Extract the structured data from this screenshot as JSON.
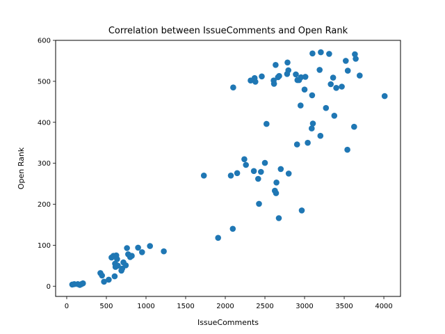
{
  "chart_data": {
    "type": "scatter",
    "title": "Correlation between IssueComments and Open Rank",
    "xlabel": "IssueComments",
    "ylabel": "Open Rank",
    "xlim": [
      -140,
      4210
    ],
    "ylim": [
      -25,
      600
    ],
    "xticks": [
      0,
      500,
      1000,
      1500,
      2000,
      2500,
      3000,
      3500,
      4000
    ],
    "yticks": [
      0,
      100,
      200,
      300,
      400,
      500,
      600
    ],
    "grid": false,
    "legend": "none",
    "marker_color": "#1f77b4",
    "points": [
      {
        "x": 70,
        "y": 4
      },
      {
        "x": 95,
        "y": 5
      },
      {
        "x": 140,
        "y": 5
      },
      {
        "x": 165,
        "y": 3
      },
      {
        "x": 185,
        "y": 5
      },
      {
        "x": 205,
        "y": 7
      },
      {
        "x": 425,
        "y": 32
      },
      {
        "x": 445,
        "y": 26
      },
      {
        "x": 470,
        "y": 11
      },
      {
        "x": 530,
        "y": 16
      },
      {
        "x": 565,
        "y": 70
      },
      {
        "x": 590,
        "y": 74
      },
      {
        "x": 605,
        "y": 24
      },
      {
        "x": 610,
        "y": 55
      },
      {
        "x": 615,
        "y": 47
      },
      {
        "x": 625,
        "y": 75
      },
      {
        "x": 635,
        "y": 66
      },
      {
        "x": 645,
        "y": 50
      },
      {
        "x": 690,
        "y": 38
      },
      {
        "x": 700,
        "y": 43
      },
      {
        "x": 715,
        "y": 58
      },
      {
        "x": 745,
        "y": 51
      },
      {
        "x": 760,
        "y": 93
      },
      {
        "x": 775,
        "y": 78
      },
      {
        "x": 800,
        "y": 71
      },
      {
        "x": 820,
        "y": 74
      },
      {
        "x": 900,
        "y": 94
      },
      {
        "x": 950,
        "y": 83
      },
      {
        "x": 1050,
        "y": 98
      },
      {
        "x": 1225,
        "y": 85
      },
      {
        "x": 1730,
        "y": 270
      },
      {
        "x": 1910,
        "y": 118
      },
      {
        "x": 2070,
        "y": 270
      },
      {
        "x": 2095,
        "y": 140
      },
      {
        "x": 2100,
        "y": 485
      },
      {
        "x": 2150,
        "y": 276
      },
      {
        "x": 2240,
        "y": 310
      },
      {
        "x": 2260,
        "y": 296
      },
      {
        "x": 2320,
        "y": 502
      },
      {
        "x": 2360,
        "y": 281
      },
      {
        "x": 2370,
        "y": 508
      },
      {
        "x": 2380,
        "y": 499
      },
      {
        "x": 2415,
        "y": 262
      },
      {
        "x": 2425,
        "y": 201
      },
      {
        "x": 2450,
        "y": 279
      },
      {
        "x": 2460,
        "y": 512
      },
      {
        "x": 2500,
        "y": 301
      },
      {
        "x": 2520,
        "y": 396
      },
      {
        "x": 2610,
        "y": 502
      },
      {
        "x": 2615,
        "y": 494
      },
      {
        "x": 2625,
        "y": 233
      },
      {
        "x": 2635,
        "y": 540
      },
      {
        "x": 2640,
        "y": 227
      },
      {
        "x": 2645,
        "y": 253
      },
      {
        "x": 2665,
        "y": 510
      },
      {
        "x": 2675,
        "y": 166
      },
      {
        "x": 2680,
        "y": 513
      },
      {
        "x": 2700,
        "y": 286
      },
      {
        "x": 2780,
        "y": 518
      },
      {
        "x": 2785,
        "y": 546
      },
      {
        "x": 2795,
        "y": 527
      },
      {
        "x": 2800,
        "y": 275
      },
      {
        "x": 2890,
        "y": 517
      },
      {
        "x": 2905,
        "y": 346
      },
      {
        "x": 2910,
        "y": 503
      },
      {
        "x": 2930,
        "y": 503
      },
      {
        "x": 2950,
        "y": 441
      },
      {
        "x": 2955,
        "y": 510
      },
      {
        "x": 2965,
        "y": 185
      },
      {
        "x": 3000,
        "y": 480
      },
      {
        "x": 3010,
        "y": 511
      },
      {
        "x": 3040,
        "y": 350
      },
      {
        "x": 3090,
        "y": 385
      },
      {
        "x": 3095,
        "y": 466
      },
      {
        "x": 3100,
        "y": 568
      },
      {
        "x": 3105,
        "y": 397
      },
      {
        "x": 3190,
        "y": 528
      },
      {
        "x": 3200,
        "y": 367
      },
      {
        "x": 3205,
        "y": 571
      },
      {
        "x": 3270,
        "y": 435
      },
      {
        "x": 3310,
        "y": 567
      },
      {
        "x": 3330,
        "y": 493
      },
      {
        "x": 3360,
        "y": 509
      },
      {
        "x": 3375,
        "y": 416
      },
      {
        "x": 3400,
        "y": 484
      },
      {
        "x": 3470,
        "y": 487
      },
      {
        "x": 3520,
        "y": 550
      },
      {
        "x": 3540,
        "y": 333
      },
      {
        "x": 3545,
        "y": 526
      },
      {
        "x": 3625,
        "y": 389
      },
      {
        "x": 3635,
        "y": 566
      },
      {
        "x": 3645,
        "y": 555
      },
      {
        "x": 3695,
        "y": 514
      },
      {
        "x": 4010,
        "y": 464
      }
    ]
  }
}
